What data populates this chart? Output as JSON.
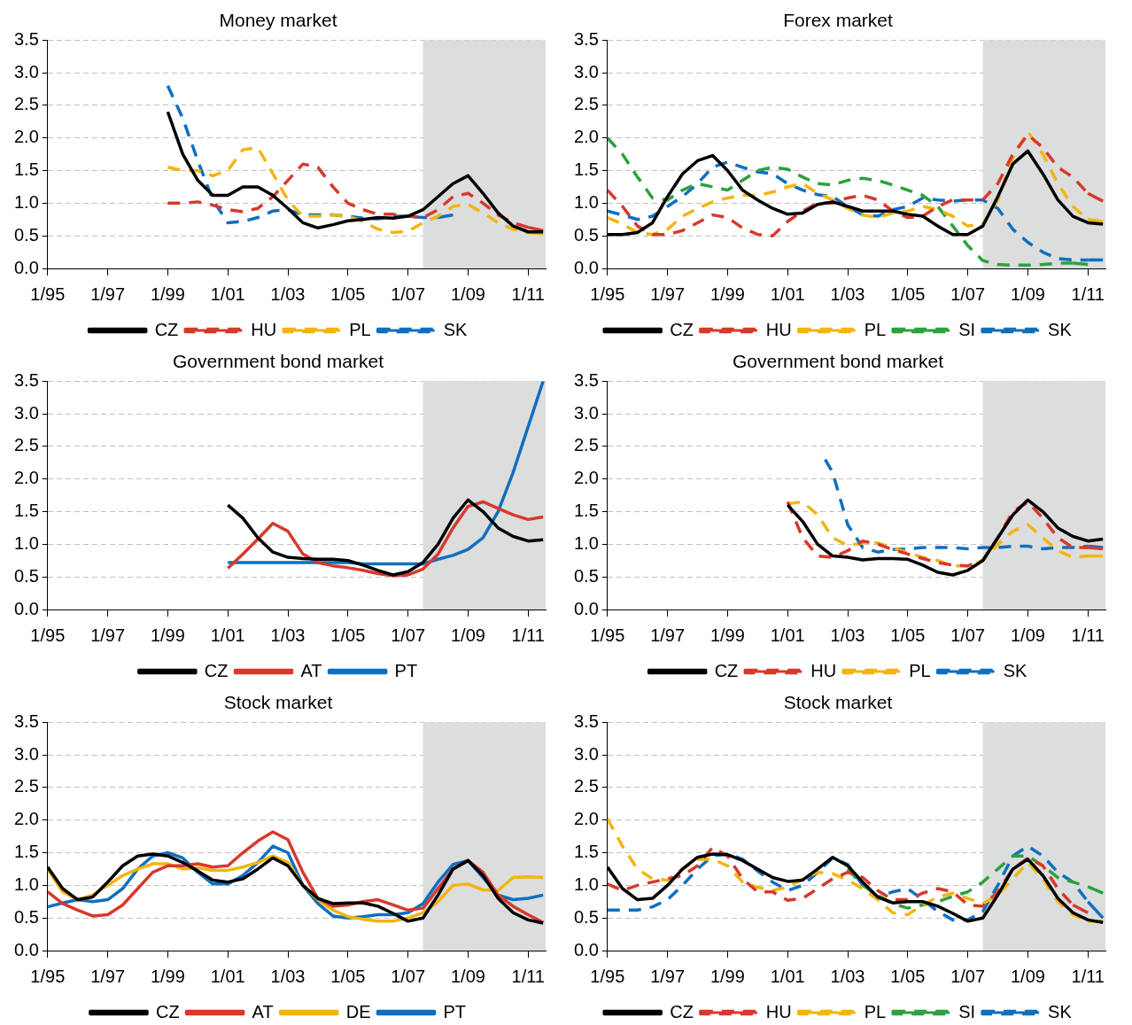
{
  "chart_data": [
    {
      "type": "line",
      "title": "Money market",
      "legend": "bottom",
      "grid": "y",
      "xlim": [
        "1995-01",
        "2011-08"
      ],
      "ylim": [
        0,
        3.5
      ],
      "xticks": [
        {
          "value": "1995-01",
          "label": "1/95"
        },
        {
          "value": "1997-01",
          "label": "1/97"
        },
        {
          "value": "1999-01",
          "label": "1/99"
        },
        {
          "value": "2001-01",
          "label": "1/01"
        },
        {
          "value": "2003-01",
          "label": "1/03"
        },
        {
          "value": "2005-01",
          "label": "1/05"
        },
        {
          "value": "2007-01",
          "label": "1/07"
        },
        {
          "value": "2009-01",
          "label": "1/09"
        },
        {
          "value": "2011-01",
          "label": "1/11"
        }
      ],
      "yticks": [
        {
          "value": 0,
          "label": "0.0"
        },
        {
          "value": 0.5,
          "label": "0.5"
        },
        {
          "value": 1,
          "label": "1.0"
        },
        {
          "value": 1.5,
          "label": "1.5"
        },
        {
          "value": 2,
          "label": "2.0"
        },
        {
          "value": 2.5,
          "label": "2.5"
        },
        {
          "value": 3,
          "label": "3.0"
        },
        {
          "value": 3.5,
          "label": "3.5"
        }
      ],
      "bands": [
        {
          "axis": "x",
          "from": "2007-07",
          "to": "2011-08",
          "color": "#dcdddd"
        }
      ],
      "x": [
        "1999-01",
        "1999-07",
        "2000-01",
        "2000-07",
        "2001-01",
        "2001-07",
        "2002-01",
        "2002-07",
        "2003-01",
        "2003-07",
        "2004-01",
        "2004-07",
        "2005-01",
        "2005-07",
        "2006-01",
        "2006-07",
        "2007-01",
        "2007-07",
        "2008-01",
        "2008-07",
        "2009-01",
        "2009-07",
        "2010-01",
        "2010-07",
        "2011-01",
        "2011-07"
      ],
      "series": [
        {
          "name": "CZ",
          "color": "#000000",
          "line_style": "solid",
          "values": [
            2.4,
            1.75,
            1.35,
            1.12,
            1.12,
            1.25,
            1.25,
            1.12,
            0.92,
            0.7,
            0.62,
            0.67,
            0.73,
            0.75,
            0.78,
            0.77,
            0.8,
            0.9,
            1.1,
            1.3,
            1.42,
            1.15,
            0.85,
            0.65,
            0.56,
            0.56
          ]
        },
        {
          "name": "HU",
          "color": "#d7392b",
          "line_style": "dashed",
          "values": [
            1.0,
            1.0,
            1.02,
            0.97,
            0.9,
            0.87,
            0.92,
            1.1,
            1.35,
            1.6,
            1.55,
            1.25,
            1.0,
            0.9,
            0.83,
            0.83,
            0.8,
            0.78,
            0.9,
            1.1,
            1.15,
            1.0,
            0.82,
            0.7,
            0.63,
            0.58
          ]
        },
        {
          "name": "PL",
          "color": "#f2b50f",
          "line_style": "dashed",
          "values": [
            1.55,
            1.5,
            1.5,
            1.42,
            1.5,
            1.82,
            1.85,
            1.45,
            1.05,
            0.8,
            0.8,
            0.82,
            0.8,
            0.72,
            0.6,
            0.55,
            0.57,
            0.7,
            0.8,
            0.95,
            0.98,
            0.85,
            0.7,
            0.6,
            0.55,
            0.53
          ]
        },
        {
          "name": "SK",
          "color": "#0f6fbf",
          "line_style": "dashed",
          "values": [
            2.8,
            2.3,
            1.65,
            1.05,
            0.7,
            0.72,
            0.78,
            0.88,
            0.9,
            0.82,
            0.82,
            0.82,
            0.8,
            0.77,
            0.76,
            0.8,
            0.8,
            0.78,
            0.78,
            0.82,
            null,
            null,
            null,
            null,
            null,
            null
          ]
        }
      ]
    },
    {
      "type": "line",
      "title": "Forex market",
      "legend": "bottom",
      "grid": "y",
      "xlim": [
        "1995-01",
        "2011-08"
      ],
      "ylim": [
        0,
        3.5
      ],
      "xticks": [
        {
          "value": "1995-01",
          "label": "1/95"
        },
        {
          "value": "1997-01",
          "label": "1/97"
        },
        {
          "value": "1999-01",
          "label": "1/99"
        },
        {
          "value": "2001-01",
          "label": "1/01"
        },
        {
          "value": "2003-01",
          "label": "1/03"
        },
        {
          "value": "2005-01",
          "label": "1/05"
        },
        {
          "value": "2007-01",
          "label": "1/07"
        },
        {
          "value": "2009-01",
          "label": "1/09"
        },
        {
          "value": "2011-01",
          "label": "1/11"
        }
      ],
      "yticks": [
        {
          "value": 0,
          "label": "0.0"
        },
        {
          "value": 0.5,
          "label": "0.5"
        },
        {
          "value": 1,
          "label": "1.0"
        },
        {
          "value": 1.5,
          "label": "1.5"
        },
        {
          "value": 2,
          "label": "2.0"
        },
        {
          "value": 2.5,
          "label": "2.5"
        },
        {
          "value": 3,
          "label": "3.0"
        },
        {
          "value": 3.5,
          "label": "3.5"
        }
      ],
      "bands": [
        {
          "axis": "x",
          "from": "2007-07",
          "to": "2011-08",
          "color": "#dcdddd"
        }
      ],
      "x": [
        "1995-01",
        "1995-07",
        "1996-01",
        "1996-07",
        "1997-01",
        "1997-07",
        "1998-01",
        "1998-07",
        "1999-01",
        "1999-07",
        "2000-01",
        "2000-07",
        "2001-01",
        "2001-07",
        "2002-01",
        "2002-07",
        "2003-01",
        "2003-07",
        "2004-01",
        "2004-07",
        "2005-01",
        "2005-07",
        "2006-01",
        "2006-07",
        "2007-01",
        "2007-07",
        "2008-01",
        "2008-07",
        "2009-01",
        "2009-07",
        "2010-01",
        "2010-07",
        "2011-01",
        "2011-07"
      ],
      "series": [
        {
          "name": "CZ",
          "color": "#000000",
          "line_style": "solid",
          "values": [
            0.52,
            0.52,
            0.55,
            0.7,
            1.1,
            1.45,
            1.65,
            1.73,
            1.5,
            1.2,
            1.05,
            0.92,
            0.83,
            0.85,
            0.98,
            1.02,
            0.95,
            0.88,
            0.88,
            0.88,
            0.83,
            0.8,
            0.65,
            0.52,
            0.52,
            0.65,
            1.1,
            1.6,
            1.8,
            1.45,
            1.05,
            0.8,
            0.7,
            0.68
          ]
        },
        {
          "name": "HU",
          "color": "#d7392b",
          "line_style": "dashed",
          "values": [
            1.2,
            0.95,
            0.65,
            0.52,
            0.52,
            0.58,
            0.7,
            0.82,
            0.78,
            0.62,
            0.52,
            0.5,
            0.72,
            0.88,
            1.0,
            1.0,
            1.08,
            1.12,
            1.05,
            0.88,
            0.78,
            0.8,
            0.95,
            1.05,
            1.05,
            1.05,
            1.3,
            1.75,
            2.05,
            1.85,
            1.55,
            1.4,
            1.15,
            1.03
          ]
        },
        {
          "name": "PL",
          "color": "#f2b50f",
          "line_style": "dashed",
          "values": [
            0.78,
            0.68,
            0.55,
            0.52,
            0.6,
            0.8,
            0.92,
            1.02,
            1.08,
            1.12,
            1.12,
            1.17,
            1.25,
            1.3,
            1.15,
            1.05,
            0.92,
            0.82,
            0.78,
            0.85,
            0.88,
            0.95,
            0.9,
            0.8,
            0.65,
            0.68,
            1.05,
            1.7,
            2.1,
            1.75,
            1.3,
            0.95,
            0.75,
            0.72
          ]
        },
        {
          "name": "SI",
          "color": "#2ba23c",
          "line_style": "dashed",
          "values": [
            2.0,
            1.75,
            1.4,
            1.08,
            1.05,
            1.2,
            1.3,
            1.25,
            1.2,
            1.35,
            1.5,
            1.55,
            1.52,
            1.4,
            1.3,
            1.28,
            1.35,
            1.38,
            1.35,
            1.28,
            1.2,
            1.12,
            0.95,
            0.65,
            0.35,
            0.12,
            0.06,
            0.05,
            0.05,
            0.06,
            0.08,
            0.08,
            0.06,
            null
          ]
        },
        {
          "name": "SK",
          "color": "#0f6fbf",
          "line_style": "dashed",
          "values": [
            0.88,
            0.82,
            0.75,
            0.8,
            0.95,
            1.1,
            1.3,
            1.55,
            1.63,
            1.55,
            1.48,
            1.45,
            1.3,
            1.2,
            1.13,
            1.1,
            0.95,
            0.82,
            0.8,
            0.9,
            0.95,
            1.08,
            1.05,
            1.03,
            1.05,
            1.05,
            0.92,
            0.6,
            0.4,
            0.25,
            0.15,
            0.13,
            0.13,
            0.13
          ]
        }
      ]
    },
    {
      "type": "line",
      "title": "Government bond market",
      "legend": "bottom",
      "grid": "y",
      "xlim": [
        "1995-01",
        "2011-08"
      ],
      "ylim": [
        0,
        3.5
      ],
      "xticks": [
        {
          "value": "1995-01",
          "label": "1/95"
        },
        {
          "value": "1997-01",
          "label": "1/97"
        },
        {
          "value": "1999-01",
          "label": "1/99"
        },
        {
          "value": "2001-01",
          "label": "1/01"
        },
        {
          "value": "2003-01",
          "label": "1/03"
        },
        {
          "value": "2005-01",
          "label": "1/05"
        },
        {
          "value": "2007-01",
          "label": "1/07"
        },
        {
          "value": "2009-01",
          "label": "1/09"
        },
        {
          "value": "2011-01",
          "label": "1/11"
        }
      ],
      "yticks": [
        {
          "value": 0,
          "label": "0.0"
        },
        {
          "value": 0.5,
          "label": "0.5"
        },
        {
          "value": 1,
          "label": "1.0"
        },
        {
          "value": 1.5,
          "label": "1.5"
        },
        {
          "value": 2,
          "label": "2.0"
        },
        {
          "value": 2.5,
          "label": "2.5"
        },
        {
          "value": 3,
          "label": "3.0"
        },
        {
          "value": 3.5,
          "label": "3.5"
        }
      ],
      "bands": [
        {
          "axis": "x",
          "from": "2007-07",
          "to": "2011-08",
          "color": "#dcdddd"
        }
      ],
      "x": [
        "2001-01",
        "2001-07",
        "2002-01",
        "2002-07",
        "2003-01",
        "2003-07",
        "2004-01",
        "2004-07",
        "2005-01",
        "2005-07",
        "2006-01",
        "2006-07",
        "2007-01",
        "2007-07",
        "2008-01",
        "2008-07",
        "2009-01",
        "2009-07",
        "2010-01",
        "2010-07",
        "2011-01",
        "2011-07"
      ],
      "series": [
        {
          "name": "CZ",
          "color": "#000000",
          "line_style": "solid",
          "values": [
            1.6,
            1.4,
            1.1,
            0.88,
            0.8,
            0.78,
            0.77,
            0.77,
            0.75,
            0.68,
            0.6,
            0.53,
            0.58,
            0.72,
            1.0,
            1.4,
            1.68,
            1.5,
            1.25,
            1.12,
            1.05,
            1.07
          ]
        },
        {
          "name": "AT",
          "color": "#d7392b",
          "line_style": "solid",
          "values": [
            0.63,
            0.85,
            1.08,
            1.32,
            1.2,
            0.85,
            0.72,
            0.67,
            0.64,
            0.6,
            0.55,
            0.52,
            0.53,
            0.62,
            0.85,
            1.25,
            1.58,
            1.65,
            1.55,
            1.45,
            1.38,
            1.42
          ]
        },
        {
          "name": "PT",
          "color": "#0f6fbf",
          "line_style": "solid",
          "values": [
            0.72,
            0.72,
            0.72,
            0.72,
            0.72,
            0.72,
            0.72,
            0.72,
            0.72,
            0.7,
            0.7,
            0.7,
            0.7,
            0.7,
            0.77,
            0.83,
            0.92,
            1.1,
            1.5,
            2.1,
            2.8,
            3.5
          ]
        }
      ]
    },
    {
      "type": "line",
      "title": "Government bond market",
      "legend": "bottom",
      "grid": "y",
      "xlim": [
        "1995-01",
        "2011-08"
      ],
      "ylim": [
        0,
        3.5
      ],
      "xticks": [
        {
          "value": "1995-01",
          "label": "1/95"
        },
        {
          "value": "1997-01",
          "label": "1/97"
        },
        {
          "value": "1999-01",
          "label": "1/99"
        },
        {
          "value": "2001-01",
          "label": "1/01"
        },
        {
          "value": "2003-01",
          "label": "1/03"
        },
        {
          "value": "2005-01",
          "label": "1/05"
        },
        {
          "value": "2007-01",
          "label": "1/07"
        },
        {
          "value": "2009-01",
          "label": "1/09"
        },
        {
          "value": "2011-01",
          "label": "1/11"
        }
      ],
      "yticks": [
        {
          "value": 0,
          "label": "0.0"
        },
        {
          "value": 0.5,
          "label": "0.5"
        },
        {
          "value": 1,
          "label": "1.0"
        },
        {
          "value": 1.5,
          "label": "1.5"
        },
        {
          "value": 2,
          "label": "2.0"
        },
        {
          "value": 2.5,
          "label": "2.5"
        },
        {
          "value": 3,
          "label": "3.0"
        },
        {
          "value": 3.5,
          "label": "3.5"
        }
      ],
      "bands": [
        {
          "axis": "x",
          "from": "2007-07",
          "to": "2011-08",
          "color": "#dcdddd"
        }
      ],
      "x": [
        "2001-01",
        "2001-07",
        "2002-01",
        "2002-07",
        "2003-01",
        "2003-07",
        "2004-01",
        "2004-07",
        "2005-01",
        "2005-07",
        "2006-01",
        "2006-07",
        "2007-01",
        "2007-07",
        "2008-01",
        "2008-07",
        "2009-01",
        "2009-07",
        "2010-01",
        "2010-07",
        "2011-01",
        "2011-07"
      ],
      "series": [
        {
          "name": "CZ",
          "color": "#000000",
          "line_style": "solid",
          "values": [
            1.6,
            1.35,
            1.0,
            0.82,
            0.8,
            0.76,
            0.78,
            0.78,
            0.77,
            0.68,
            0.57,
            0.53,
            0.6,
            0.75,
            1.1,
            1.45,
            1.68,
            1.5,
            1.25,
            1.12,
            1.05,
            1.08
          ]
        },
        {
          "name": "HU",
          "color": "#d7392b",
          "line_style": "dashed",
          "values": [
            1.65,
            1.1,
            0.82,
            0.8,
            0.9,
            1.05,
            1.0,
            0.92,
            0.85,
            0.78,
            0.72,
            0.68,
            0.67,
            0.75,
            1.1,
            1.5,
            1.65,
            1.4,
            1.1,
            0.95,
            0.95,
            0.93
          ]
        },
        {
          "name": "PL",
          "color": "#f2b50f",
          "line_style": "dashed",
          "values": [
            1.62,
            1.65,
            1.45,
            1.1,
            0.98,
            1.02,
            1.02,
            0.95,
            0.87,
            0.8,
            0.75,
            0.67,
            0.67,
            0.75,
            1.0,
            1.2,
            1.3,
            1.1,
            0.9,
            0.8,
            0.82,
            0.82
          ]
        },
        {
          "name": "SK",
          "color": "#0f6fbf",
          "line_style": "dashed",
          "x": [
            "2002-04",
            "2002-07",
            "2003-01",
            "2003-07",
            "2004-01",
            "2004-07",
            "2005-01",
            "2005-07",
            "2006-01",
            "2006-07",
            "2007-01",
            "2007-07",
            "2008-01",
            "2008-07",
            "2009-01",
            "2009-07",
            "2010-01",
            "2010-07",
            "2011-01",
            "2011-07"
          ],
          "values": [
            2.3,
            2.1,
            1.3,
            0.95,
            0.88,
            0.92,
            0.93,
            0.95,
            0.95,
            0.95,
            0.93,
            0.95,
            0.95,
            0.97,
            0.97,
            0.93,
            0.95,
            0.95,
            0.97,
            0.95
          ]
        }
      ]
    },
    {
      "type": "line",
      "title": "Stock market",
      "legend": "bottom",
      "grid": "y",
      "xlim": [
        "1995-01",
        "2011-08"
      ],
      "ylim": [
        0,
        3.5
      ],
      "xticks": [
        {
          "value": "1995-01",
          "label": "1/95"
        },
        {
          "value": "1997-01",
          "label": "1/97"
        },
        {
          "value": "1999-01",
          "label": "1/99"
        },
        {
          "value": "2001-01",
          "label": "1/01"
        },
        {
          "value": "2003-01",
          "label": "1/03"
        },
        {
          "value": "2005-01",
          "label": "1/05"
        },
        {
          "value": "2007-01",
          "label": "1/07"
        },
        {
          "value": "2009-01",
          "label": "1/09"
        },
        {
          "value": "2011-01",
          "label": "1/11"
        }
      ],
      "yticks": [
        {
          "value": 0,
          "label": "0.0"
        },
        {
          "value": 0.5,
          "label": "0.5"
        },
        {
          "value": 1,
          "label": "1.0"
        },
        {
          "value": 1.5,
          "label": "1.5"
        },
        {
          "value": 2,
          "label": "2.0"
        },
        {
          "value": 2.5,
          "label": "2.5"
        },
        {
          "value": 3,
          "label": "3.0"
        },
        {
          "value": 3.5,
          "label": "3.5"
        }
      ],
      "bands": [
        {
          "axis": "x",
          "from": "2007-07",
          "to": "2011-08",
          "color": "#dcdddd"
        }
      ],
      "x": [
        "1995-01",
        "1995-07",
        "1996-01",
        "1996-07",
        "1997-01",
        "1997-07",
        "1998-01",
        "1998-07",
        "1999-01",
        "1999-07",
        "2000-01",
        "2000-07",
        "2001-01",
        "2001-07",
        "2002-01",
        "2002-07",
        "2003-01",
        "2003-07",
        "2004-01",
        "2004-07",
        "2005-01",
        "2005-07",
        "2006-01",
        "2006-07",
        "2007-01",
        "2007-07",
        "2008-01",
        "2008-07",
        "2009-01",
        "2009-07",
        "2010-01",
        "2010-07",
        "2011-01",
        "2011-07"
      ],
      "series": [
        {
          "name": "CZ",
          "color": "#000000",
          "line_style": "solid",
          "values": [
            1.28,
            0.95,
            0.78,
            0.82,
            1.05,
            1.3,
            1.45,
            1.48,
            1.45,
            1.35,
            1.22,
            1.08,
            1.05,
            1.1,
            1.25,
            1.42,
            1.3,
            1.0,
            0.8,
            0.72,
            0.73,
            0.73,
            0.68,
            0.57,
            0.45,
            0.5,
            0.85,
            1.25,
            1.38,
            1.15,
            0.8,
            0.58,
            0.47,
            0.42
          ]
        },
        {
          "name": "AT",
          "color": "#d7392b",
          "line_style": "solid",
          "values": [
            0.9,
            0.72,
            0.62,
            0.53,
            0.55,
            0.7,
            0.95,
            1.2,
            1.3,
            1.3,
            1.33,
            1.28,
            1.3,
            1.5,
            1.68,
            1.82,
            1.7,
            1.2,
            0.8,
            0.68,
            0.7,
            0.75,
            0.78,
            0.7,
            0.62,
            0.65,
            0.95,
            1.25,
            1.38,
            1.2,
            0.85,
            0.68,
            0.55,
            0.43
          ]
        },
        {
          "name": "DE",
          "color": "#f2b50f",
          "line_style": "solid",
          "values": [
            1.25,
            0.9,
            0.78,
            0.85,
            1.0,
            1.15,
            1.25,
            1.33,
            1.33,
            1.25,
            1.27,
            1.23,
            1.23,
            1.28,
            1.35,
            1.45,
            1.35,
            1.0,
            0.78,
            0.62,
            0.52,
            0.48,
            0.45,
            0.45,
            0.5,
            0.58,
            0.75,
            1.0,
            1.02,
            0.93,
            0.92,
            1.12,
            1.13,
            1.12
          ]
        },
        {
          "name": "PT",
          "color": "#0f6fbf",
          "line_style": "solid",
          "values": [
            0.67,
            0.73,
            0.78,
            0.75,
            0.78,
            0.95,
            1.25,
            1.45,
            1.5,
            1.42,
            1.2,
            1.02,
            1.02,
            1.15,
            1.35,
            1.6,
            1.5,
            1.0,
            0.72,
            0.53,
            0.5,
            0.52,
            0.55,
            0.55,
            0.58,
            0.72,
            1.05,
            1.32,
            1.38,
            1.12,
            0.85,
            0.78,
            0.8,
            0.85
          ]
        }
      ]
    },
    {
      "type": "line",
      "title": "Stock market",
      "legend": "bottom",
      "grid": "y",
      "xlim": [
        "1995-01",
        "2011-08"
      ],
      "ylim": [
        0,
        3.5
      ],
      "xticks": [
        {
          "value": "1995-01",
          "label": "1/95"
        },
        {
          "value": "1997-01",
          "label": "1/97"
        },
        {
          "value": "1999-01",
          "label": "1/99"
        },
        {
          "value": "2001-01",
          "label": "1/01"
        },
        {
          "value": "2003-01",
          "label": "1/03"
        },
        {
          "value": "2005-01",
          "label": "1/05"
        },
        {
          "value": "2007-01",
          "label": "1/07"
        },
        {
          "value": "2009-01",
          "label": "1/09"
        },
        {
          "value": "2011-01",
          "label": "1/11"
        }
      ],
      "yticks": [
        {
          "value": 0,
          "label": "0.0"
        },
        {
          "value": 0.5,
          "label": "0.5"
        },
        {
          "value": 1,
          "label": "1.0"
        },
        {
          "value": 1.5,
          "label": "1.5"
        },
        {
          "value": 2,
          "label": "2.0"
        },
        {
          "value": 2.5,
          "label": "2.5"
        },
        {
          "value": 3,
          "label": "3.0"
        },
        {
          "value": 3.5,
          "label": "3.5"
        }
      ],
      "bands": [
        {
          "axis": "x",
          "from": "2007-07",
          "to": "2011-08",
          "color": "#dcdddd"
        }
      ],
      "x": [
        "1995-01",
        "1995-07",
        "1996-01",
        "1996-07",
        "1997-01",
        "1997-07",
        "1998-01",
        "1998-07",
        "1999-01",
        "1999-07",
        "2000-01",
        "2000-07",
        "2001-01",
        "2001-07",
        "2002-01",
        "2002-07",
        "2003-01",
        "2003-07",
        "2004-01",
        "2004-07",
        "2005-01",
        "2005-07",
        "2006-01",
        "2006-07",
        "2007-01",
        "2007-07",
        "2008-01",
        "2008-07",
        "2009-01",
        "2009-07",
        "2010-01",
        "2010-07",
        "2011-01",
        "2011-07"
      ],
      "series": [
        {
          "name": "CZ",
          "color": "#000000",
          "line_style": "solid",
          "values": [
            1.28,
            0.95,
            0.78,
            0.8,
            1.0,
            1.25,
            1.43,
            1.48,
            1.47,
            1.38,
            1.25,
            1.12,
            1.06,
            1.08,
            1.25,
            1.43,
            1.3,
            1.05,
            0.82,
            0.73,
            0.75,
            0.75,
            0.68,
            0.57,
            0.45,
            0.5,
            0.85,
            1.25,
            1.4,
            1.15,
            0.8,
            0.58,
            0.47,
            0.43
          ]
        },
        {
          "name": "HU",
          "color": "#d7392b",
          "line_style": "dashed",
          "values": [
            1.02,
            0.92,
            1.0,
            1.05,
            1.1,
            1.15,
            1.3,
            1.58,
            1.45,
            1.1,
            0.9,
            0.9,
            0.77,
            0.8,
            0.95,
            1.1,
            1.2,
            1.12,
            0.92,
            0.78,
            0.78,
            0.88,
            0.95,
            0.9,
            0.7,
            0.68,
            0.9,
            1.25,
            1.42,
            1.3,
            0.95,
            0.7,
            0.58,
            null
          ]
        },
        {
          "name": "PL",
          "color": "#f2b50f",
          "line_style": "dashed",
          "values": [
            2.02,
            1.6,
            1.25,
            1.1,
            1.08,
            1.25,
            1.4,
            1.4,
            1.3,
            1.05,
            0.97,
            0.92,
            0.97,
            1.1,
            1.2,
            1.18,
            1.08,
            0.95,
            0.78,
            0.58,
            0.55,
            0.7,
            0.82,
            0.88,
            0.8,
            0.72,
            0.85,
            1.1,
            1.35,
            1.1,
            0.75,
            0.55,
            0.45,
            0.45
          ]
        },
        {
          "name": "SI",
          "color": "#2ba23c",
          "line_style": "dashed",
          "values": [
            null,
            null,
            null,
            null,
            null,
            null,
            null,
            null,
            null,
            null,
            null,
            null,
            null,
            null,
            null,
            null,
            1.25,
            1.0,
            0.85,
            0.72,
            0.65,
            0.7,
            0.75,
            0.83,
            0.9,
            1.05,
            1.25,
            1.45,
            1.45,
            1.3,
            1.12,
            1.05,
            0.98,
            0.88
          ]
        },
        {
          "name": "SK",
          "color": "#0f6fbf",
          "line_style": "dashed",
          "values": [
            0.62,
            0.62,
            0.62,
            0.67,
            0.78,
            1.0,
            1.25,
            1.45,
            1.48,
            1.4,
            1.22,
            1.05,
            0.92,
            1.0,
            1.2,
            1.42,
            1.32,
            1.0,
            0.82,
            0.9,
            0.95,
            0.78,
            0.6,
            0.47,
            0.47,
            0.6,
            1.0,
            1.45,
            1.6,
            1.45,
            1.2,
            1.05,
            0.75,
            0.5
          ]
        }
      ]
    }
  ]
}
